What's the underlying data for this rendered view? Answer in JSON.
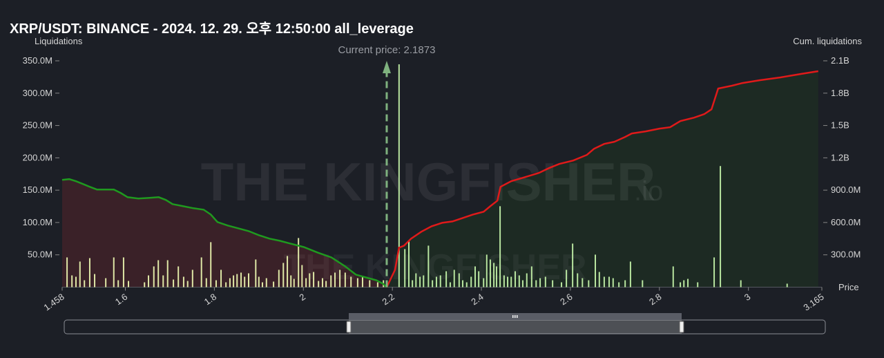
{
  "chart_data": {
    "type": "liquidation-map",
    "title": "XRP/USDT: BINANCE - 2024. 12. 29. 오후 12:50:00 all_leverage",
    "y_label": "Liquidations",
    "y2_label": "Cum. liquidations",
    "x_label": "Price",
    "watermark": "THE KINGFISHER",
    "watermark_suffix": ".io",
    "current_price": {
      "value": 2.1873,
      "label": "Current price: 2.1873",
      "color": "#7fb27f"
    },
    "xlim": [
      1.458,
      3.165
    ],
    "xticks": [
      1.458,
      1.6,
      1.8,
      2,
      2.2,
      2.4,
      2.6,
      2.8,
      3,
      3.165
    ],
    "ylim": [
      0,
      350000000
    ],
    "yticks": [
      {
        "value": 50000000,
        "label": "50.0M"
      },
      {
        "value": 100000000,
        "label": "100.0M"
      },
      {
        "value": 150000000,
        "label": "150.0M"
      },
      {
        "value": 200000000,
        "label": "200.0M"
      },
      {
        "value": 250000000,
        "label": "250.0M"
      },
      {
        "value": 300000000,
        "label": "300.0M"
      },
      {
        "value": 350000000,
        "label": "350.0M"
      }
    ],
    "y2lim": [
      0,
      2100000000
    ],
    "y2ticks": [
      {
        "value": 300000000,
        "label": "300.0M"
      },
      {
        "value": 600000000,
        "label": "600.0M"
      },
      {
        "value": 900000000,
        "label": "900.0M"
      },
      {
        "value": 1200000000,
        "label": "1.2B"
      },
      {
        "value": 1500000000,
        "label": "1.5B"
      },
      {
        "value": 1800000000,
        "label": "1.8B"
      },
      {
        "value": 2100000000,
        "label": "2.1B"
      }
    ],
    "series": [
      {
        "type": "bar",
        "color": "#dfe8a6",
        "x": [
          1.469,
          1.48,
          1.489,
          1.498,
          1.508,
          1.52,
          1.531,
          1.556,
          1.574,
          1.584,
          1.596,
          1.607,
          1.643,
          1.652,
          1.664,
          1.674,
          1.685,
          1.695,
          1.708,
          1.719,
          1.731,
          1.74,
          1.751,
          1.771,
          1.782,
          1.792,
          1.804,
          1.815,
          1.826,
          1.835,
          1.843,
          1.851,
          1.86,
          1.868,
          1.877,
          1.893,
          1.9,
          1.908,
          1.917,
          1.933,
          1.945,
          1.955,
          1.964,
          1.972,
          1.979,
          1.989,
          1.997,
          2.006,
          2.014,
          2.023,
          2.034,
          2.043,
          2.051,
          2.062,
          2.071,
          2.082,
          2.094,
          2.107,
          2.122,
          2.133,
          2.149,
          2.167,
          2.18
        ],
        "values": [
          46000000,
          18200000,
          16100000,
          39600000,
          10700000,
          44900000,
          20300000,
          13900000,
          46000000,
          10700000,
          46000000,
          9600000,
          7500000,
          18200000,
          32100000,
          41700000,
          18200000,
          41700000,
          11800000,
          32100000,
          16100000,
          9600000,
          26800000,
          46000000,
          13900000,
          69600000,
          10700000,
          26800000,
          7500000,
          13900000,
          18200000,
          20300000,
          22500000,
          16100000,
          21400000,
          42800000,
          16100000,
          7500000,
          13900000,
          8600000,
          26800000,
          37500000,
          48200000,
          18200000,
          12800000,
          76000000,
          34200000,
          13900000,
          21400000,
          23500000,
          9600000,
          13900000,
          9600000,
          18200000,
          22500000,
          26800000,
          22500000,
          16100000,
          13900000,
          16100000,
          10700000,
          7500000,
          10700000
        ]
      },
      {
        "type": "bar",
        "color": "#b9e6a0",
        "x": [
          2.215,
          2.228,
          2.237,
          2.245,
          2.253,
          2.262,
          2.27,
          2.281,
          2.29,
          2.299,
          2.308,
          2.321,
          2.33,
          2.339,
          2.35,
          2.358,
          2.367,
          2.377,
          2.386,
          2.394,
          2.405,
          2.412,
          2.42,
          2.428,
          2.434,
          2.442,
          2.451,
          2.459,
          2.467,
          2.476,
          2.485,
          2.493,
          2.502,
          2.513,
          2.523,
          2.532,
          2.544,
          2.56,
          2.58,
          2.591,
          2.605,
          2.616,
          2.627,
          2.641,
          2.656,
          2.665,
          2.676,
          2.687,
          2.696,
          2.709,
          2.723,
          2.735,
          2.762,
          2.831,
          2.847,
          2.855,
          2.864,
          2.886,
          2.923,
          2.937,
          2.983,
          3.087
        ],
        "values": [
          344600000,
          58900000,
          71700000,
          10700000,
          21400000,
          16100000,
          18200000,
          64200000,
          10700000,
          16100000,
          18200000,
          24600000,
          7500000,
          26800000,
          21400000,
          10700000,
          7500000,
          16100000,
          32100000,
          24600000,
          13900000,
          50300000,
          42800000,
          37500000,
          32100000,
          125200000,
          18200000,
          16100000,
          16100000,
          24600000,
          18200000,
          10700000,
          21400000,
          32100000,
          10700000,
          13900000,
          16100000,
          10700000,
          7500000,
          26800000,
          67400000,
          21400000,
          13900000,
          10700000,
          50300000,
          23500000,
          16100000,
          16100000,
          13900000,
          7500000,
          10700000,
          39600000,
          10700000,
          32100000,
          7500000,
          10700000,
          12800000,
          7500000,
          46000000,
          187300000,
          10700000,
          5400000
        ]
      },
      {
        "type": "line",
        "axis": "y2",
        "color": "#1f9a1f",
        "fill": "#3a2128",
        "x": [
          1.458,
          1.474,
          1.489,
          1.505,
          1.52,
          1.536,
          1.551,
          1.574,
          1.59,
          1.605,
          1.629,
          1.652,
          1.675,
          1.691,
          1.706,
          1.73,
          1.753,
          1.776,
          1.792,
          1.807,
          1.83,
          1.854,
          1.877,
          1.9,
          1.924,
          1.947,
          1.97,
          2.001,
          2.032,
          2.063,
          2.094,
          2.118,
          2.141,
          2.164,
          2.179,
          2.1873
        ],
        "values": [
          995000000,
          1002000000,
          983000000,
          957000000,
          931000000,
          906000000,
          906000000,
          906000000,
          873000000,
          835000000,
          822000000,
          828000000,
          835000000,
          809000000,
          771000000,
          751000000,
          732000000,
          719000000,
          674000000,
          604000000,
          572000000,
          546000000,
          520000000,
          482000000,
          450000000,
          430000000,
          405000000,
          372000000,
          321000000,
          276000000,
          193000000,
          116000000,
          90000000,
          64000000,
          32000000,
          0
        ]
      },
      {
        "type": "line",
        "axis": "y2",
        "color": "#e01a1a",
        "fill": "#1d2a23",
        "x": [
          2.1873,
          2.206,
          2.215,
          2.226,
          2.242,
          2.265,
          2.288,
          2.312,
          2.335,
          2.358,
          2.381,
          2.405,
          2.42,
          2.436,
          2.443,
          2.467,
          2.498,
          2.529,
          2.552,
          2.575,
          2.606,
          2.637,
          2.653,
          2.676,
          2.699,
          2.723,
          2.738,
          2.769,
          2.8,
          2.824,
          2.847,
          2.878,
          2.901,
          2.917,
          2.932,
          2.963,
          2.987,
          3.025,
          3.072,
          3.118,
          3.157
        ],
        "values": [
          0,
          161000000,
          366000000,
          385000000,
          450000000,
          514000000,
          565000000,
          597000000,
          610000000,
          642000000,
          674000000,
          700000000,
          751000000,
          803000000,
          931000000,
          983000000,
          1021000000,
          1060000000,
          1105000000,
          1143000000,
          1175000000,
          1227000000,
          1284000000,
          1329000000,
          1349000000,
          1394000000,
          1426000000,
          1445000000,
          1471000000,
          1484000000,
          1541000000,
          1573000000,
          1606000000,
          1650000000,
          1843000000,
          1869000000,
          1894000000,
          1920000000,
          1946000000,
          1978000000,
          2004000000
        ]
      }
    ]
  }
}
